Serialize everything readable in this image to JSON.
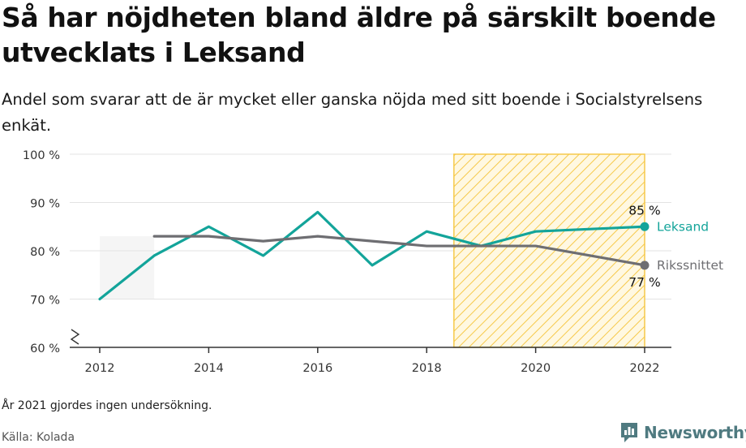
{
  "header": {
    "title": "Så har nöjdheten bland äldre på särskilt boende utvecklats i Leksand",
    "subtitle": "Andel som svarar att de är mycket eller ganska nöjda med sitt boende i Socialstyrelsens enkät."
  },
  "footer": {
    "note": "År 2021 gjordes ingen undersökning.",
    "source": "Källa: Kolada",
    "brand": "Newsworthy"
  },
  "colors": {
    "leksand": "#13a49a",
    "riks": "#6e6e72",
    "highlight": "#f6c94a",
    "grid": "#e3e3e3",
    "axis": "#333333",
    "brand": "#4f7a80"
  },
  "chart_data": {
    "type": "line",
    "x_ticks": [
      2012,
      2014,
      2016,
      2018,
      2020,
      2022
    ],
    "y_ticks": [
      60,
      70,
      80,
      90,
      100
    ],
    "y_tick_labels": [
      "60 %",
      "70 %",
      "80 %",
      "90 %",
      "100 %"
    ],
    "ylim": [
      60,
      100
    ],
    "xlim": [
      2011.5,
      2022.5
    ],
    "y_axis_break": true,
    "grid": true,
    "highlight_range": [
      2018.5,
      2022
    ],
    "series": [
      {
        "name": "Leksand",
        "color": "#13a49a",
        "x": [
          2012,
          2013,
          2014,
          2015,
          2016,
          2017,
          2018,
          2019,
          2020,
          2022
        ],
        "y": [
          70,
          79,
          85,
          79,
          88,
          77,
          84,
          81,
          84,
          85
        ],
        "end_label": "85 %"
      },
      {
        "name": "Rikssnittet",
        "color": "#6e6e72",
        "x": [
          2013,
          2014,
          2015,
          2016,
          2017,
          2018,
          2019,
          2020,
          2022
        ],
        "y": [
          83,
          83,
          82,
          83,
          82,
          81,
          81,
          81,
          77
        ],
        "end_label": "77 %"
      }
    ]
  }
}
